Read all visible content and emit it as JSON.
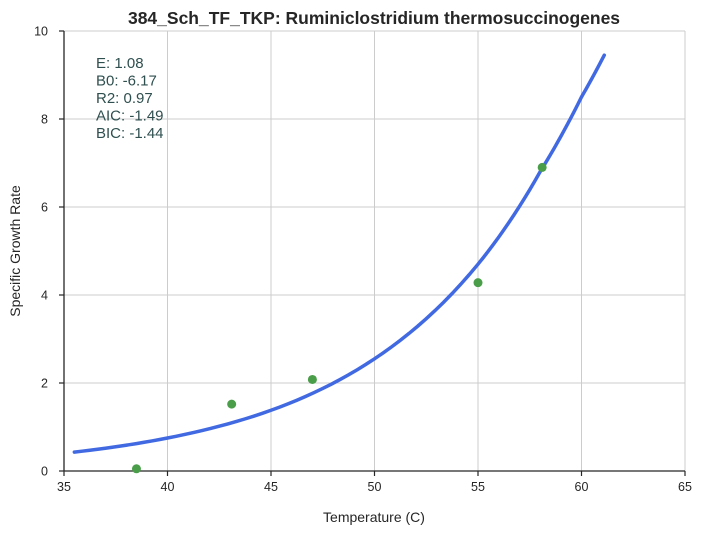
{
  "chart_data": {
    "type": "scatter",
    "title": "384_Sch_TF_TKP: Ruminiclostridium thermosuccinogenes",
    "xlabel": "Temperature (C)",
    "ylabel": "Specific Growth Rate",
    "xlim": [
      35,
      65
    ],
    "ylim": [
      0,
      10
    ],
    "xticks": [
      "35",
      "40",
      "45",
      "50",
      "55",
      "60",
      "65"
    ],
    "yticks": [
      "0",
      "2",
      "4",
      "6",
      "8",
      "10"
    ],
    "grid": true,
    "points": {
      "color": "#4a9e4a",
      "x": [
        38.5,
        43.1,
        47.0,
        55.0,
        58.1
      ],
      "y": [
        0.05,
        1.52,
        2.08,
        4.28,
        6.9
      ]
    },
    "fit_curve": {
      "color": "#4169e1",
      "x": [
        35.5,
        40,
        45,
        50,
        55,
        58,
        60,
        61.1
      ],
      "y": [
        0.43,
        0.75,
        1.38,
        2.55,
        4.7,
        6.8,
        8.5,
        9.45
      ]
    },
    "annotations": [
      "E:  1.08",
      "B0:  -6.17",
      "R2:  0.97",
      "AIC: -1.49",
      "BIC: -1.44"
    ]
  }
}
